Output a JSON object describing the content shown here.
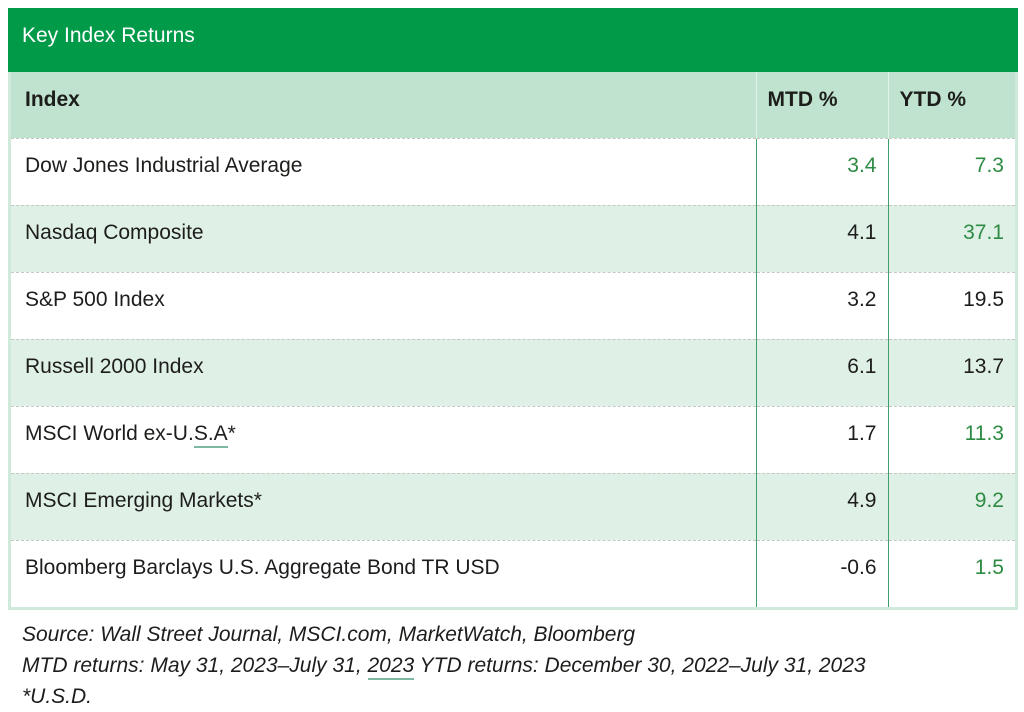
{
  "title": "Key Index Returns",
  "table": {
    "columns": [
      "Index",
      "MTD %",
      "YTD %"
    ],
    "rows": [
      {
        "name_pre": "Dow Jones Industrial Average",
        "name_underline": "",
        "name_post": "",
        "mtd": "3.4",
        "ytd": "7.3",
        "mtd_green": true,
        "ytd_green": true
      },
      {
        "name_pre": "Nasdaq Composite",
        "name_underline": "",
        "name_post": "",
        "mtd": "4.1",
        "ytd": "37.1",
        "mtd_green": false,
        "ytd_green": true
      },
      {
        "name_pre": "S&P 500 Index",
        "name_underline": "",
        "name_post": "",
        "mtd": "3.2",
        "ytd": "19.5",
        "mtd_green": false,
        "ytd_green": false
      },
      {
        "name_pre": "Russell 2000 Index",
        "name_underline": "",
        "name_post": "",
        "mtd": "6.1",
        "ytd": "13.7",
        "mtd_green": false,
        "ytd_green": false
      },
      {
        "name_pre": "MSCI World ex-U.",
        "name_underline": "S.A",
        "name_post": "*",
        "mtd": "1.7",
        "ytd": "11.3",
        "mtd_green": false,
        "ytd_green": true
      },
      {
        "name_pre": "MSCI Emerging Markets*",
        "name_underline": "",
        "name_post": "",
        "mtd": "4.9",
        "ytd": "9.2",
        "mtd_green": false,
        "ytd_green": true
      },
      {
        "name_pre": "Bloomberg Barclays U.S. Aggregate Bond TR USD",
        "name_underline": "",
        "name_post": "",
        "mtd": "-0.6",
        "ytd": "1.5",
        "mtd_green": false,
        "ytd_green": true
      }
    ]
  },
  "footer": {
    "source": "Source: Wall Street Journal, MSCI.com, MarketWatch, Bloomberg",
    "returns_pre": "MTD returns: May 31, 2023–July 31, ",
    "returns_underline": "2023",
    "returns_post": " YTD returns: December 30, 2022–July 31, 2023",
    "usd_note": "*U.S.D."
  },
  "colors": {
    "header_green": "#009a49",
    "header_row_bg": "#bfe3cf",
    "alt_row_bg": "#dff0e6",
    "positive_green": "#2e8b43",
    "text_dark": "#1d1d1b",
    "grid_green": "#3f9e6b",
    "dash_gray": "#c4c9c6",
    "outer_border": "#cfe9da",
    "underline_green": "#7cb9a0"
  }
}
